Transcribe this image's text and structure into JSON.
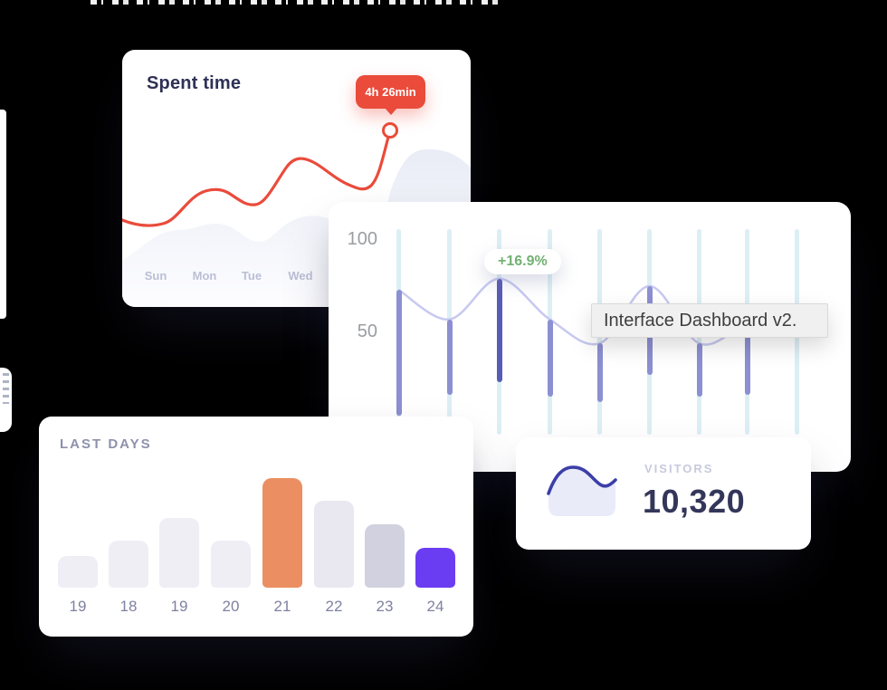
{
  "canvas": {
    "background": "#000000"
  },
  "spent_time_card": {
    "title": "Spent time",
    "tooltip_label": "4h 26min",
    "day_labels": [
      "Sun",
      "Mon",
      "Tue",
      "Wed"
    ],
    "colors": {
      "line": "#EA4B3B",
      "marker_fill": "#FFFFFF",
      "tooltip_bg": "#EA4B3B",
      "tooltip_text": "#FFFFFF",
      "title": "#2E3156",
      "day_label": "#BBBFD4",
      "area_fill": "#ECEFF7"
    },
    "chart_data": {
      "type": "line",
      "x": [
        "Sun",
        "Mon",
        "Tue",
        "Wed"
      ],
      "values_relative": [
        0.34,
        0.33,
        0.46,
        0.44,
        0.57,
        0.52,
        0.47,
        0.7
      ],
      "highlight": {
        "label": "4h 26min",
        "position": "line-end"
      },
      "ylabel": "",
      "xlabel": "",
      "grid": "off",
      "note": "no numeric axis shown; values estimated from curve height, tooltip marks final point"
    }
  },
  "activity_card": {
    "y_tick_labels": [
      "100",
      "50"
    ],
    "badge_label": "+16.9%",
    "tooltip_label": "Interface Dashboard v2.",
    "colors": {
      "grid": "#D8EDF3",
      "bar": "#8C8FD1",
      "bar_emphasis": "#575CB6",
      "line": "#C7C9F0",
      "badge_text": "#72B172",
      "tick": "#9A9DA1",
      "tooltip_bg": "#F1F0F0",
      "tooltip_text": "#3E3E3E"
    },
    "chart_data": {
      "type": "bar",
      "ylim": [
        0,
        100
      ],
      "y_ticks": [
        100,
        50
      ],
      "grid_columns": 9,
      "bars": [
        {
          "from": 5,
          "to": 73
        },
        {
          "from": 16,
          "to": 57
        },
        {
          "from": 23,
          "to": 79,
          "emphasis": true
        },
        {
          "from": 15,
          "to": 57
        },
        {
          "from": 12,
          "to": 44
        },
        {
          "from": 27,
          "to": 75
        },
        {
          "from": 15,
          "to": 44
        },
        {
          "from": 16,
          "to": 53
        }
      ],
      "line_values": [
        73,
        57,
        79,
        57,
        44,
        75,
        44,
        53,
        48
      ],
      "badge": {
        "label": "+16.9%",
        "attached_to_bar_index": 2
      },
      "legend_position": "none",
      "note": "floating range bars over cyan gridline columns with a smooth trend line; 8th bar partly hidden by tooltip"
    }
  },
  "last_days_card": {
    "title": "LAST DAYS",
    "colors": {
      "title": "#8E91AC",
      "label": "#7F81A0"
    },
    "chart_data": {
      "type": "bar",
      "categories": [
        "19",
        "18",
        "19",
        "20",
        "21",
        "22",
        "23",
        "24"
      ],
      "values": [
        29,
        43,
        64,
        43,
        100,
        79,
        58,
        36
      ],
      "bar_colors": [
        "#EFEEF4",
        "#EFEEF4",
        "#EFEEF4",
        "#EFEEF4",
        "#EB8F62",
        "#E9E8F0",
        "#D2D1DF",
        "#6B3DF2"
      ],
      "ylabel": "",
      "xlabel": "",
      "grid": "off",
      "note": "no y-axis shown; values are % of tallest bar (day 21)"
    }
  },
  "visitors_card": {
    "label": "VISITORS",
    "value": "10,320",
    "colors": {
      "label": "#C7CADD",
      "value": "#343659",
      "mini_line": "#3C3FA8",
      "mini_fill": "#E9EBF9"
    }
  }
}
